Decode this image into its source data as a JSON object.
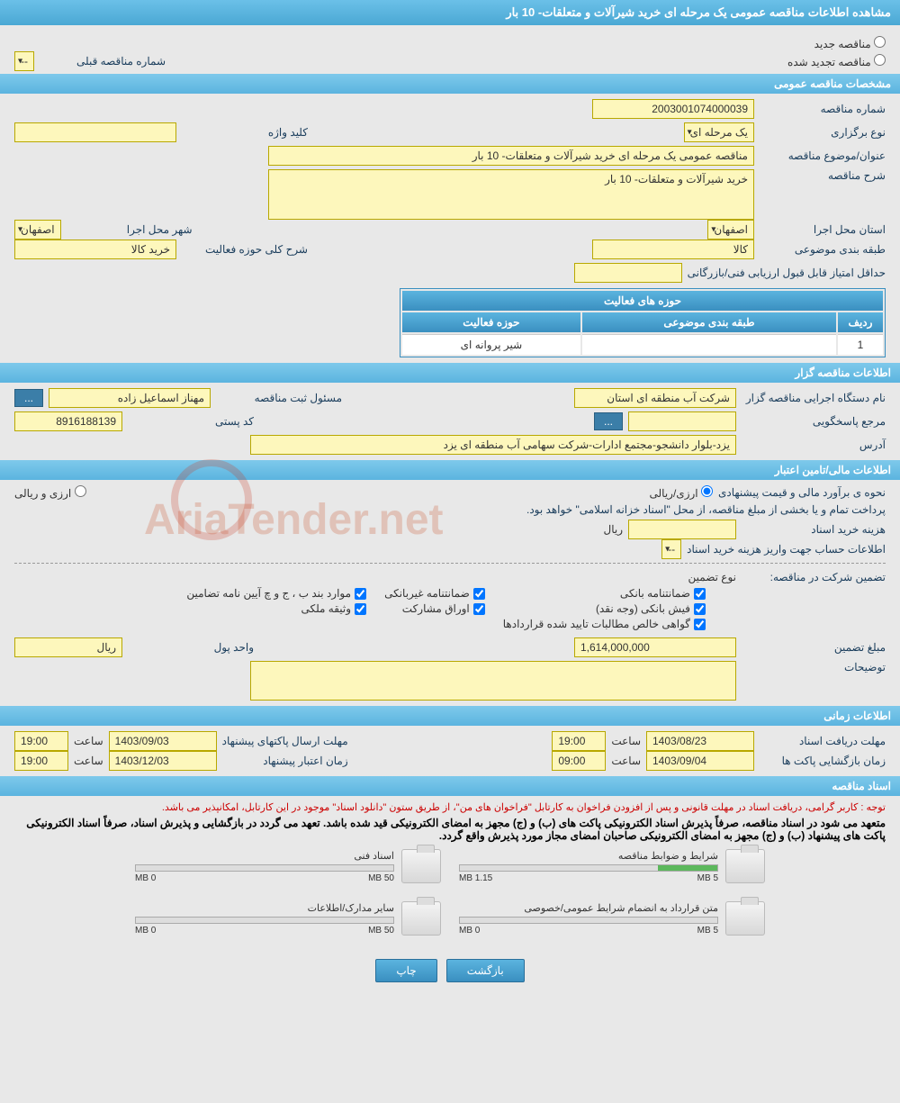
{
  "page_title": "مشاهده اطلاعات مناقصه عمومی یک مرحله ای خرید شیرآلات و متعلقات- 10 بار",
  "tender_type": {
    "new_label": "مناقصه جدید",
    "renewed_label": "مناقصه تجدید شده",
    "prev_number_label": "شماره مناقصه قبلی",
    "prev_number_value": "--"
  },
  "sec_general": {
    "header": "مشخصات مناقصه عمومی",
    "number_label": "شماره مناقصه",
    "number": "2003001074000039",
    "holding_type_label": "نوع برگزاری",
    "holding_type": "یک مرحله ای",
    "keyword_label": "کلید واژه",
    "keyword": "",
    "subject_label": "عنوان/موضوع مناقصه",
    "subject": "مناقصه عمومی یک مرحله ای خرید شیرآلات و متعلقات- 10 بار",
    "desc_label": "شرح مناقصه",
    "desc": "خرید شیرآلات و متعلقات- 10 بار",
    "province_label": "استان محل اجرا",
    "province": "اصفهان",
    "city_label": "شهر محل اجرا",
    "city": "اصفهان",
    "category_label": "طبقه بندی موضوعی",
    "category": "کالا",
    "activity_scope_label": "شرح کلی حوزه فعالیت",
    "activity_scope": "خرید کالا",
    "min_score_label": "حداقل امتیاز قابل قبول ارزیابی فنی/بازرگانی",
    "min_score": "",
    "activity_table": {
      "header": "حوزه های فعالیت",
      "col_row": "ردیف",
      "col_category": "طبقه بندی موضوعی",
      "col_scope": "حوزه فعالیت",
      "rows": [
        {
          "idx": "1",
          "category": "",
          "scope": "شیر پروانه ای"
        }
      ]
    }
  },
  "sec_org": {
    "header": "اطلاعات مناقصه گزار",
    "org_label": "نام دستگاه اجرایی مناقصه گزار",
    "org": "شرکت آب منطقه ای استان",
    "registrar_label": "مسئول ثبت مناقصه",
    "registrar": "مهناز اسماعیل زاده",
    "responder_label": "مرجع پاسخگویی",
    "responder": "",
    "postal_label": "کد پستی",
    "postal": "8916188139",
    "address_label": "آدرس",
    "address": "یزد-بلوار دانشجو-مجتمع ادارات-شرکت سهامی آب منطقه ای یزد"
  },
  "sec_financial": {
    "header": "اطلاعات مالی/تامین اعتبار",
    "estimate_label": "نحوه ی برآورد مالی و قیمت پیشنهادی",
    "estimate_opt1": "ارزی/ریالی",
    "estimate_opt2": "ارزی و ریالی",
    "treasury_note": "پرداخت تمام و یا بخشی از مبلغ مناقصه، از محل \"اسناد خزانه اسلامی\" خواهد بود.",
    "doc_fee_label": "هزینه خرید اسناد",
    "doc_fee": "",
    "doc_fee_unit": "ریال",
    "account_label": "اطلاعات حساب جهت واریز هزینه خرید اسناد",
    "account": "--",
    "guarantee_label": "تضمین شرکت در مناقصه:",
    "guarantee_type_label": "نوع تضمین",
    "chk": {
      "g1": "ضمانتنامه بانکی",
      "g2": "ضمانتنامه غیربانکی",
      "g3": "موارد بند ب ، ج و چ آیین نامه تضامین",
      "g4": "فیش بانکی (وجه نقد)",
      "g5": "اوراق مشارکت",
      "g6": "وثیقه ملکی",
      "g7": "گواهی خالص مطالبات تایید شده قراردادها"
    },
    "amount_label": "مبلغ تضمین",
    "amount": "1,614,000,000",
    "amount_unit_label": "واحد پول",
    "amount_unit": "ریال",
    "notes_label": "توضیحات",
    "notes": ""
  },
  "sec_time": {
    "header": "اطلاعات زمانی",
    "receive_label": "مهلت دریافت اسناد",
    "receive_date": "1403/08/23",
    "receive_time": "19:00",
    "submit_label": "مهلت ارسال پاکتهای پیشنهاد",
    "submit_date": "1403/09/03",
    "submit_time": "19:00",
    "open_label": "زمان بازگشایی پاکت ها",
    "open_date": "1403/09/04",
    "open_time": "09:00",
    "validity_label": "زمان اعتبار پیشنهاد",
    "validity_date": "1403/12/03",
    "validity_time": "19:00",
    "time_label": "ساعت"
  },
  "sec_docs": {
    "header": "اسناد مناقصه",
    "notice1": "توجه : کاربر گرامی، دریافت اسناد در مهلت قانونی و پس از افزودن فراخوان به کارتابل \"فراخوان های من\"، از طریق ستون \"دانلود اسناد\" موجود در این کارتابل، امکانپذیر می باشد.",
    "notice2": "متعهد می شود در اسناد مناقصه، صرفاً پذیرش اسناد الکترونیکی پاکت های (ب) و (ج) مجهز به امضای الکترونیکی قید شده باشد. تعهد می گردد در بازگشایی و پذیرش اسناد، صرفاً اسناد الکترونیکی پاکت های پیشنهاد (ب) و (ج) مجهز به امضای الکترونیکی صاحبان امضای مجاز مورد پذیرش واقع گردد.",
    "files": [
      {
        "title": "شرایط و ضوابط مناقصه",
        "used": "1.15 MB",
        "max": "5 MB",
        "pct": 23
      },
      {
        "title": "اسناد فنی",
        "used": "0 MB",
        "max": "50 MB",
        "pct": 0
      },
      {
        "title": "متن قرارداد به انضمام شرایط عمومی/خصوصی",
        "used": "0 MB",
        "max": "5 MB",
        "pct": 0
      },
      {
        "title": "سایر مدارک/اطلاعات",
        "used": "0 MB",
        "max": "50 MB",
        "pct": 0
      }
    ]
  },
  "buttons": {
    "back": "بازگشت",
    "print": "چاپ"
  },
  "watermark": "AriaTender.net",
  "colors": {
    "field_bg": "#fdf7bc",
    "header_bg1": "#7ec9eb",
    "header_bg2": "#5bb4df"
  }
}
